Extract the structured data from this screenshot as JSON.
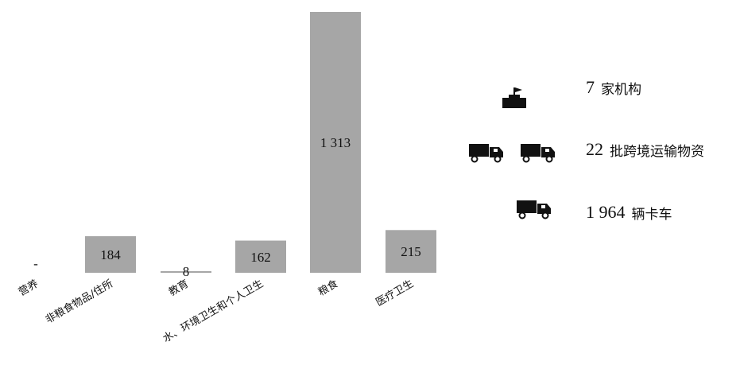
{
  "chart_data": {
    "type": "bar",
    "categories": [
      "营养",
      "非粮食物品/住所",
      "教育",
      "水、环境卫生和个人卫生",
      "粮食",
      "医疗卫生"
    ],
    "values": [
      0,
      184,
      8,
      162,
      1313,
      215
    ],
    "value_labels": [
      "-",
      "184",
      "8",
      "162",
      "1 313",
      "215"
    ],
    "title": "",
    "xlabel": "",
    "ylabel": "",
    "bar_color": "#a6a6a6",
    "grid": false,
    "legend": "none"
  },
  "stats": [
    {
      "number": "7",
      "unit": "家机构",
      "icon": "building-flag-icon"
    },
    {
      "number": "22",
      "unit": "批跨境运输物资",
      "icon": "two-trucks-icon"
    },
    {
      "number": "1 964",
      "unit": "辆卡车",
      "icon": "truck-icon"
    }
  ],
  "colors": {
    "icon": "#111111",
    "bar": "#a6a6a6",
    "text": "#111111"
  }
}
